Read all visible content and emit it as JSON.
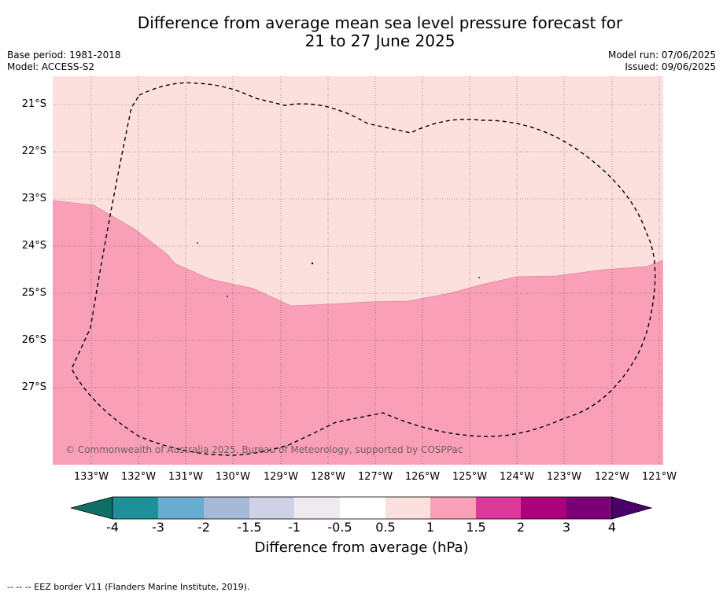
{
  "title_line1": "Difference from average mean sea level pressure forecast for",
  "title_line2": "21 to 27 June 2025",
  "base_period": "Base period: 1981-2018",
  "model": "Model: ACCESS-S2",
  "model_run": "Model run: 07/06/2025",
  "issued": "Issued: 09/06/2025",
  "map": {
    "lat_labels": [
      "21°S",
      "22°S",
      "23°S",
      "24°S",
      "25°S",
      "26°S",
      "27°S"
    ],
    "lon_labels": [
      "133°W",
      "132°W",
      "131°W",
      "130°W",
      "129°W",
      "128°W",
      "127°W",
      "126°W",
      "125°W",
      "124°W",
      "123°W",
      "122°W",
      "121°W"
    ],
    "copyright": "© Commonwealth of Australia 2025, Bureau of Meteorology, supported by COSPPac",
    "region_colors": {
      "upper_0.5_to_1": "#fce0de",
      "lower_1_to_1.5": "#f99fb8"
    },
    "boundary_style": "dashed black EEZ border"
  },
  "colorbar": {
    "label": "Difference from average (hPa)",
    "ticks": [
      "-4",
      "-3",
      "-2",
      "-1.5",
      "-1",
      "-0.5",
      "0.5",
      "1",
      "1.5",
      "2",
      "3",
      "4"
    ],
    "colors": [
      "#0e6f64",
      "#1e9098",
      "#69acd1",
      "#a6b9d9",
      "#cfd1e6",
      "#efe9f0",
      "#ffffff",
      "#fce0de",
      "#f99fb8",
      "#dc3899",
      "#ac007c",
      "#7b0077",
      "#4a006b"
    ]
  },
  "footnote": "--  --  -- EEZ border V11 (Flanders Marine Institute, 2019)."
}
